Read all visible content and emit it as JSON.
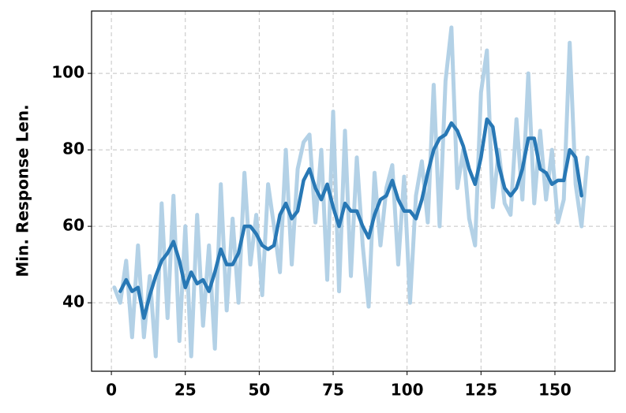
{
  "chart_data": {
    "type": "line",
    "y_label": "Min. Response Len.",
    "x": [
      1,
      3,
      5,
      7,
      9,
      11,
      13,
      15,
      17,
      19,
      21,
      23,
      25,
      27,
      29,
      31,
      33,
      35,
      37,
      39,
      41,
      43,
      45,
      47,
      49,
      51,
      53,
      55,
      57,
      59,
      61,
      63,
      65,
      67,
      69,
      71,
      73,
      75,
      77,
      79,
      81,
      83,
      85,
      87,
      89,
      91,
      93,
      95,
      97,
      99,
      101,
      103,
      105,
      107,
      109,
      111,
      113,
      115,
      117,
      119,
      121,
      123,
      125,
      127,
      129,
      131,
      133,
      135,
      137,
      139,
      141,
      143,
      145,
      147,
      149,
      151,
      153,
      155,
      157,
      159,
      161
    ],
    "series": [
      {
        "color": "#b3d1e6",
        "values": [
          44,
          40,
          51,
          31,
          55,
          31,
          47,
          26,
          66,
          36,
          68,
          30,
          60,
          26,
          63,
          34,
          55,
          28,
          71,
          38,
          62,
          40,
          74,
          50,
          63,
          42,
          71,
          60,
          48,
          80,
          50,
          75,
          82,
          84,
          61,
          80,
          46,
          90,
          43,
          85,
          47,
          78,
          55,
          39,
          74,
          55,
          70,
          76,
          50,
          73,
          40,
          68,
          77,
          61,
          97,
          60,
          98,
          112,
          70,
          80,
          62,
          55,
          95,
          106,
          65,
          80,
          66,
          63,
          88,
          67,
          100,
          66,
          85,
          67,
          80,
          61,
          67,
          108,
          71,
          60,
          78
        ]
      },
      {
        "color": "#2878b5",
        "values": [
          null,
          43,
          46,
          43,
          44,
          36,
          42,
          47,
          51,
          53,
          56,
          51,
          44,
          48,
          45,
          46,
          43,
          48,
          54,
          50,
          50,
          53,
          60,
          60,
          58,
          55,
          54,
          55,
          63,
          66,
          62,
          64,
          72,
          75,
          70,
          67,
          71,
          65,
          60,
          66,
          64,
          64,
          60,
          57,
          63,
          67,
          68,
          72,
          67,
          64,
          64,
          62,
          67,
          74,
          80,
          83,
          84,
          87,
          85,
          81,
          75,
          71,
          78,
          88,
          86,
          76,
          70,
          68,
          70,
          75,
          83,
          83,
          75,
          74,
          71,
          72,
          72,
          80,
          78,
          68,
          null
        ]
      }
    ],
    "xlim": [
      -6.7,
      170.3
    ],
    "ylim": [
      22.1,
      116.3
    ],
    "xticks": [
      0,
      25,
      50,
      75,
      100,
      125,
      150
    ],
    "yticks": [
      40,
      60,
      80,
      100
    ],
    "grid": true
  }
}
